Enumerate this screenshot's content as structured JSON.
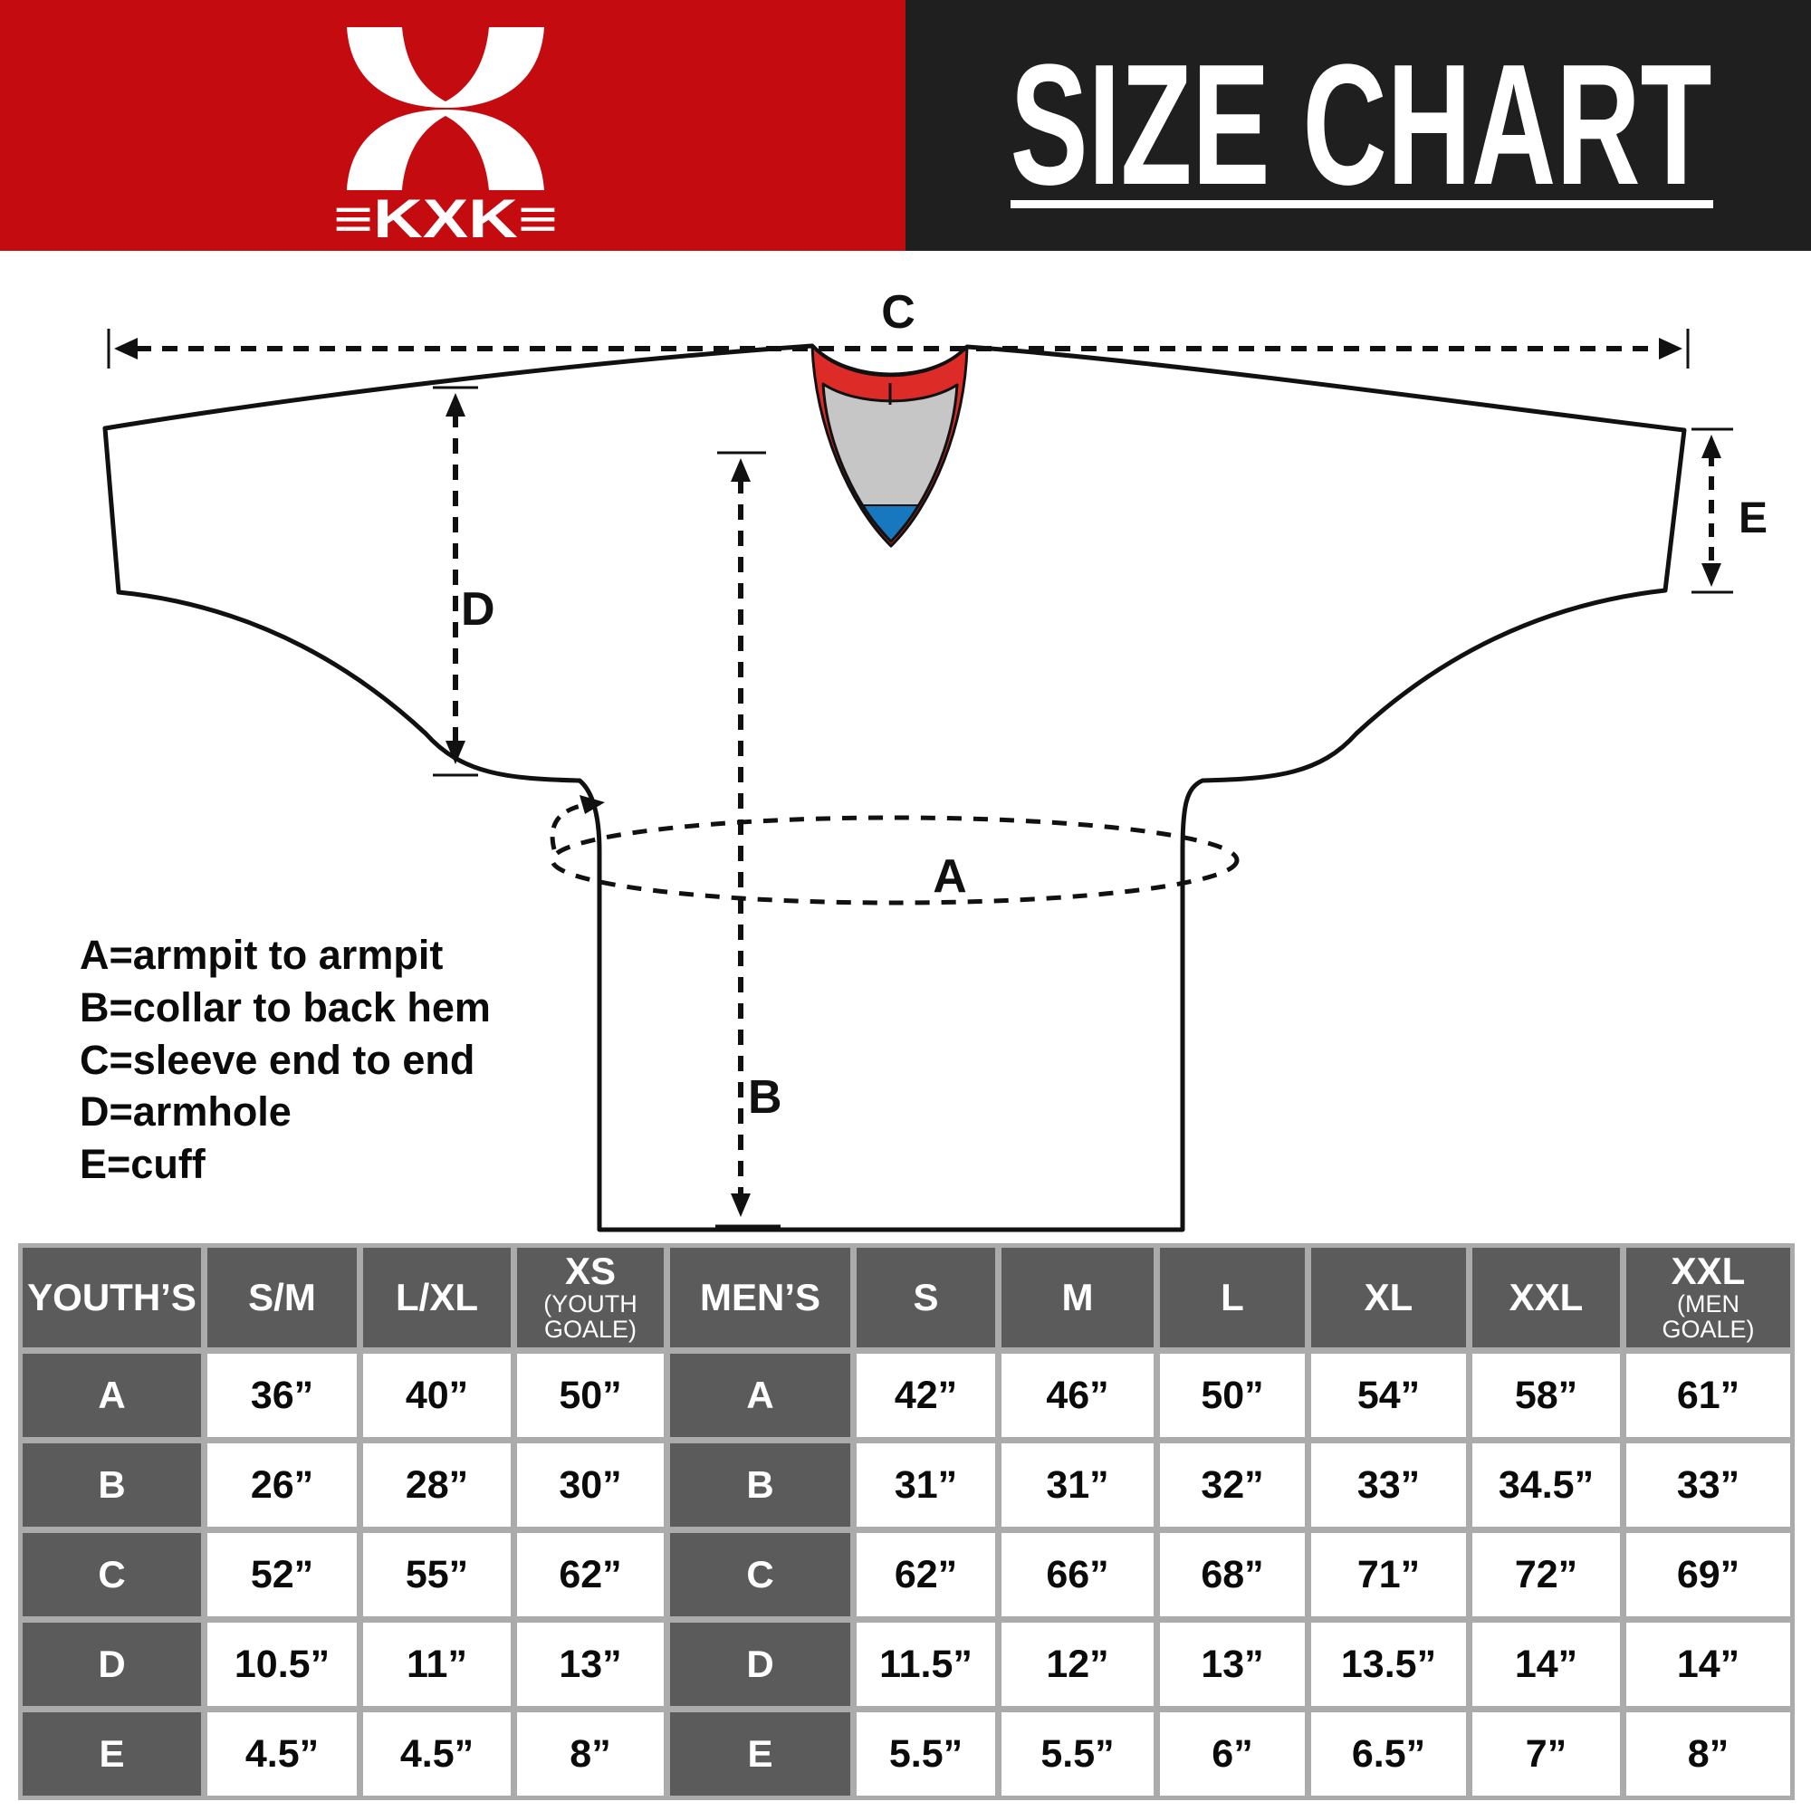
{
  "header": {
    "logo": {
      "brand": "≡KXK≡"
    },
    "title": "SIZE CHART"
  },
  "colors": {
    "brand_red": "#C40B10",
    "header_black": "#1F1F1F",
    "collar_red": "#DD2C27",
    "collar_gray": "#C6C6C6",
    "collar_blue": "#1778BF",
    "outline_black": "#111111",
    "table_grid_gray": "#ABABAB",
    "table_header_gray": "#5B5B5B"
  },
  "diagram": {
    "labels": {
      "a": "A",
      "b": "B",
      "c": "C",
      "d": "D",
      "e": "E"
    },
    "legend": [
      "A=armpit to armpit",
      "B=collar to back hem",
      "C=sleeve end to end",
      "D=armhole",
      "E=cuff"
    ]
  },
  "table": {
    "columns": [
      {
        "label": "YOUTH’S",
        "type": "label"
      },
      {
        "label": "S/M"
      },
      {
        "label": "L/XL"
      },
      {
        "label": "XS",
        "sub": "(YOUTH GOALE)"
      },
      {
        "label": "MEN’S",
        "type": "label"
      },
      {
        "label": "S"
      },
      {
        "label": "M"
      },
      {
        "label": "L"
      },
      {
        "label": "XL"
      },
      {
        "label": "XXL"
      },
      {
        "label": "XXL",
        "sub": "(MEN GOALE)"
      }
    ],
    "rows": [
      {
        "measure": "A",
        "youth": [
          "36”",
          "40”",
          "50”"
        ],
        "men": [
          "42”",
          "46”",
          "50”",
          "54”",
          "58”",
          "61”"
        ]
      },
      {
        "measure": "B",
        "youth": [
          "26”",
          "28”",
          "30”"
        ],
        "men": [
          "31”",
          "31”",
          "32”",
          "33”",
          "34.5”",
          "33”"
        ]
      },
      {
        "measure": "C",
        "youth": [
          "52”",
          "55”",
          "62”"
        ],
        "men": [
          "62”",
          "66”",
          "68”",
          "71”",
          "72”",
          "69”"
        ]
      },
      {
        "measure": "D",
        "youth": [
          "10.5”",
          "11”",
          "13”"
        ],
        "men": [
          "11.5”",
          "12”",
          "13”",
          "13.5”",
          "14”",
          "14”"
        ]
      },
      {
        "measure": "E",
        "youth": [
          "4.5”",
          "4.5”",
          "8”"
        ],
        "men": [
          "5.5”",
          "5.5”",
          "6”",
          "6.5”",
          "7”",
          "8”"
        ]
      }
    ]
  }
}
